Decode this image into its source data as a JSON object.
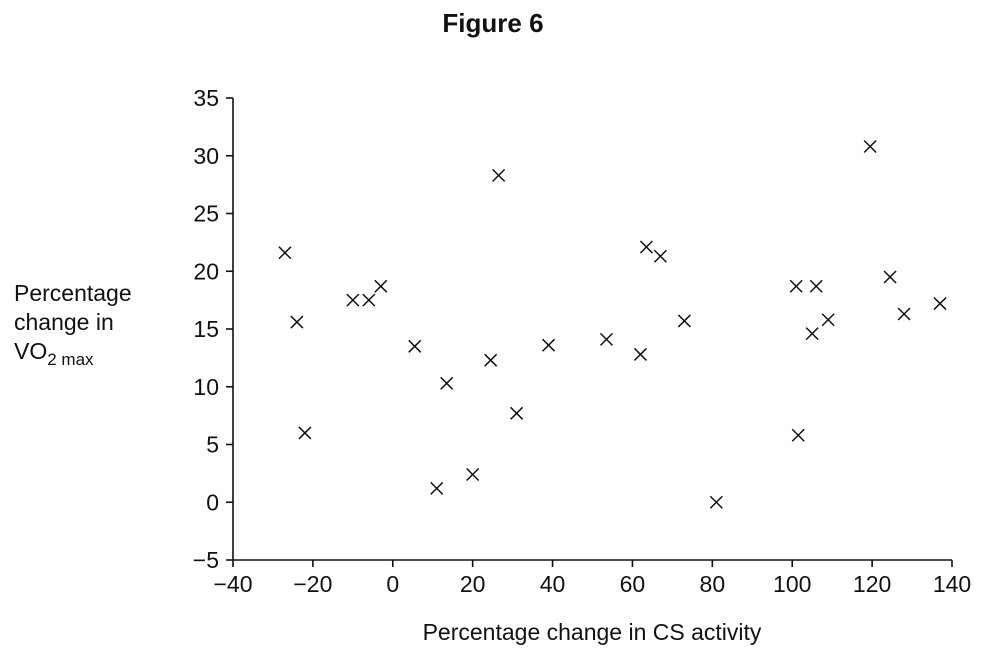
{
  "figure_title": "Figure 6",
  "chart_data": {
    "type": "scatter",
    "title": "Figure 6",
    "xlabel": "Percentage change in CS activity",
    "ylabel": {
      "line1": "Percentage",
      "line2": "change in",
      "line3_main": "VO",
      "line3_sub": "2 max"
    },
    "xlim": [
      -40,
      140
    ],
    "ylim": [
      -5,
      35
    ],
    "xticks": [
      -40,
      -20,
      0,
      20,
      40,
      60,
      80,
      100,
      120,
      140
    ],
    "yticks": [
      -5,
      0,
      5,
      10,
      15,
      20,
      25,
      30,
      35
    ],
    "xtick_labels": [
      "−40",
      "−20",
      "0",
      "20",
      "40",
      "60",
      "80",
      "100",
      "120",
      "140"
    ],
    "ytick_labels": [
      "−5",
      "0",
      "5",
      "10",
      "15",
      "20",
      "25",
      "30",
      "35"
    ],
    "marker": "x",
    "grid": false,
    "points": [
      {
        "x": -27,
        "y": 21.6
      },
      {
        "x": -24,
        "y": 15.6
      },
      {
        "x": -22,
        "y": 6.0
      },
      {
        "x": -10,
        "y": 17.5
      },
      {
        "x": -6,
        "y": 17.5
      },
      {
        "x": -3,
        "y": 18.7
      },
      {
        "x": 5.5,
        "y": 13.5
      },
      {
        "x": 11,
        "y": 1.2
      },
      {
        "x": 13.5,
        "y": 10.3
      },
      {
        "x": 20,
        "y": 2.4
      },
      {
        "x": 24.5,
        "y": 12.3
      },
      {
        "x": 26.5,
        "y": 28.3
      },
      {
        "x": 31,
        "y": 7.7
      },
      {
        "x": 39,
        "y": 13.6
      },
      {
        "x": 53.5,
        "y": 14.1
      },
      {
        "x": 62,
        "y": 12.8
      },
      {
        "x": 63.5,
        "y": 22.1
      },
      {
        "x": 67,
        "y": 21.3
      },
      {
        "x": 73,
        "y": 15.7
      },
      {
        "x": 81,
        "y": 0.0
      },
      {
        "x": 101,
        "y": 18.7
      },
      {
        "x": 101.5,
        "y": 5.8
      },
      {
        "x": 105,
        "y": 14.6
      },
      {
        "x": 106,
        "y": 18.7
      },
      {
        "x": 109,
        "y": 15.8
      },
      {
        "x": 119.5,
        "y": 30.8
      },
      {
        "x": 124.5,
        "y": 19.5
      },
      {
        "x": 128,
        "y": 16.3
      },
      {
        "x": 137,
        "y": 17.2
      }
    ]
  }
}
